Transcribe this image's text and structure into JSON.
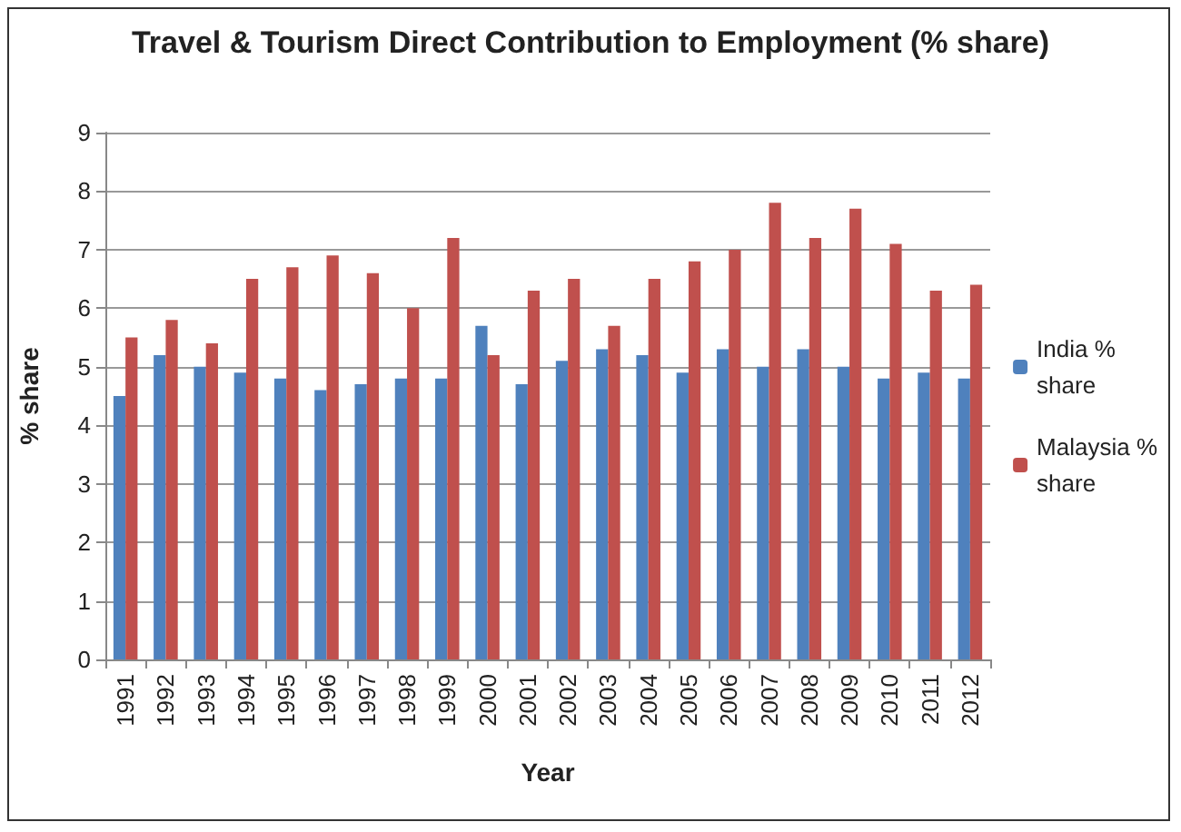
{
  "chart_data": {
    "type": "bar",
    "title": "Travel & Tourism Direct Contribution to Employment (% share)",
    "xlabel": "Year",
    "ylabel": "% share",
    "categories": [
      "1991",
      "1992",
      "1993",
      "1994",
      "1995",
      "1996",
      "1997",
      "1998",
      "1999",
      "2000",
      "2001",
      "2002",
      "2003",
      "2004",
      "2005",
      "2006",
      "2007",
      "2008",
      "2009",
      "2010",
      "2011",
      "2012"
    ],
    "series": [
      {
        "name": "India % share",
        "color": "#4f81bd",
        "values": [
          4.5,
          5.2,
          5.0,
          4.9,
          4.8,
          4.6,
          4.7,
          4.8,
          4.8,
          5.7,
          4.7,
          5.1,
          5.3,
          5.2,
          4.9,
          5.3,
          5.0,
          5.3,
          5.0,
          4.8,
          4.9,
          4.8
        ]
      },
      {
        "name": "Malaysia % share",
        "color": "#c0504d",
        "values": [
          5.5,
          5.8,
          5.4,
          6.5,
          6.7,
          6.9,
          6.6,
          6.0,
          7.2,
          5.2,
          6.3,
          6.5,
          5.7,
          6.5,
          6.8,
          7.0,
          7.8,
          7.2,
          7.7,
          7.1,
          6.3,
          6.4
        ]
      }
    ],
    "ylim": [
      0,
      9
    ],
    "yticks": [
      0,
      1,
      2,
      3,
      4,
      5,
      6,
      7,
      8,
      9
    ],
    "grid": "y",
    "legend": "right"
  }
}
